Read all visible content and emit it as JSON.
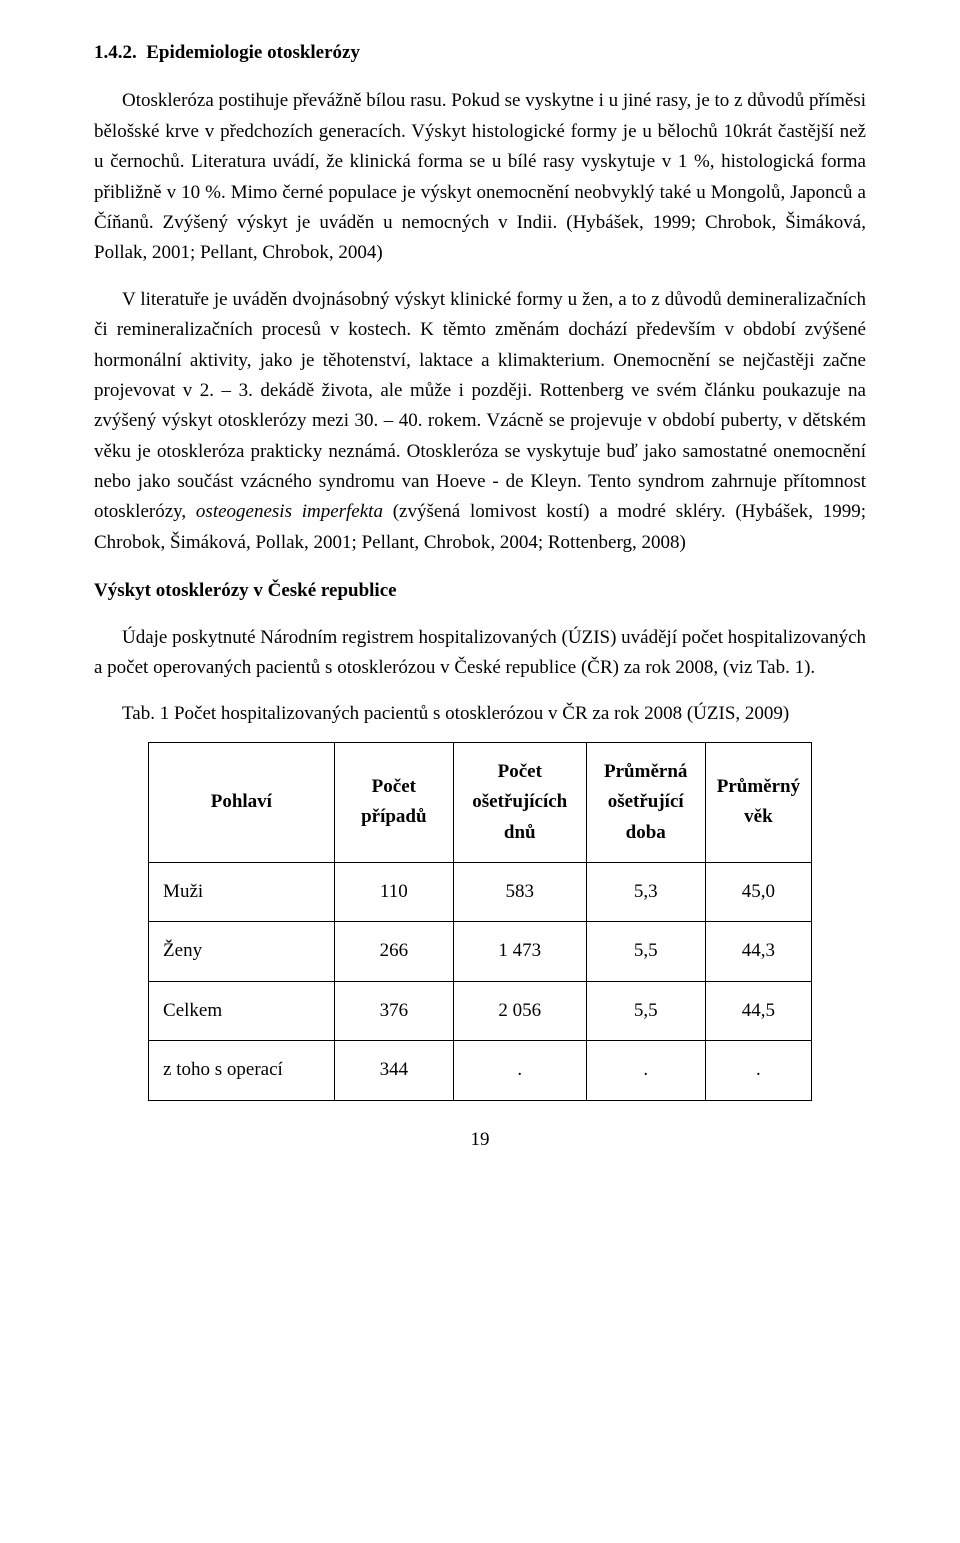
{
  "section": {
    "number": "1.4.2.",
    "title": "Epidemiologie otosklerózy"
  },
  "paragraphs": {
    "p1_a": "Otoskleróza postihuje převážně bílou rasu. Pokud se vyskytne i u jiné rasy, je to z důvodů příměsi bělošské krve v předchozích generacích. Výskyt histologické formy je u bělochů 10krát častější než u černochů. Literatura uvádí, že klinická forma se u bílé rasy vyskytuje v 1 %, histologická forma přibližně v 10 %. Mimo černé populace je výskyt onemocnění neobvyklý také u Mongolů, Japonců a Číňanů. Zvýšený výskyt je uváděn u nemocných v Indii. (Hybášek, 1999; Chrobok, Šimáková, Pollak, 2001; Pellant, Chrobok, 2004)",
    "p2_a": "V literatuře je uváděn dvojnásobný výskyt klinické formy u žen, a to z důvodů demineralizačních či remineralizačních procesů v kostech. K těmto změnám dochází především v období zvýšené hormonální aktivity, jako je těhotenství, laktace a klimakterium. Onemocnění se nejčastěji začne projevovat v 2. – 3. dekádě života, ale může i později. Rottenberg ve svém článku poukazuje na zvýšený výskyt otosklerózy mezi 30. – 40. rokem. Vzácně se projevuje v období puberty, v dětském věku je otoskleróza prakticky neznámá. Otoskleróza se vyskytuje buď jako samostatné onemocnění nebo jako součást vzácného syndromu van Hoeve - de Kleyn. Tento syndrom zahrnuje přítomnost otosklerózy, ",
    "p2_italic": "osteogenesis imperfekta",
    "p2_b": " (zvýšená lomivost kostí) a modré skléry. (Hybášek, 1999; Chrobok, Šimáková, Pollak, 2001; Pellant, Chrobok, 2004; Rottenberg, 2008)"
  },
  "subheading": "Výskyt otosklerózy v České republice",
  "para3": "Údaje poskytnuté Národním registrem hospitalizovaných (ÚZIS) uvádějí počet hospitalizovaných a počet operovaných pacientů s otosklerózou v České republice (ČR) za rok 2008, (viz Tab. 1).",
  "table": {
    "caption": "Tab. 1 Počet hospitalizovaných pacientů s otosklerózou v ČR za rok 2008 (ÚZIS, 2009)",
    "columns": [
      "Pohlaví",
      "Počet případů",
      "Počet ošetřujících dnů",
      "Průměrná ošetřující doba",
      "Průměrný věk"
    ],
    "col_widths": [
      "28%",
      "18%",
      "20%",
      "18%",
      "16%"
    ],
    "rows": [
      [
        "Muži",
        "110",
        "583",
        "5,3",
        "45,0"
      ],
      [
        "Ženy",
        "266",
        "1 473",
        "5,5",
        "44,3"
      ],
      [
        "Celkem",
        "376",
        "2 056",
        "5,5",
        "44,5"
      ],
      [
        "z toho s operací",
        "344",
        ".",
        ".",
        "."
      ]
    ]
  },
  "page_number": "19",
  "colors": {
    "text": "#000000",
    "background": "#ffffff",
    "border": "#000000"
  }
}
